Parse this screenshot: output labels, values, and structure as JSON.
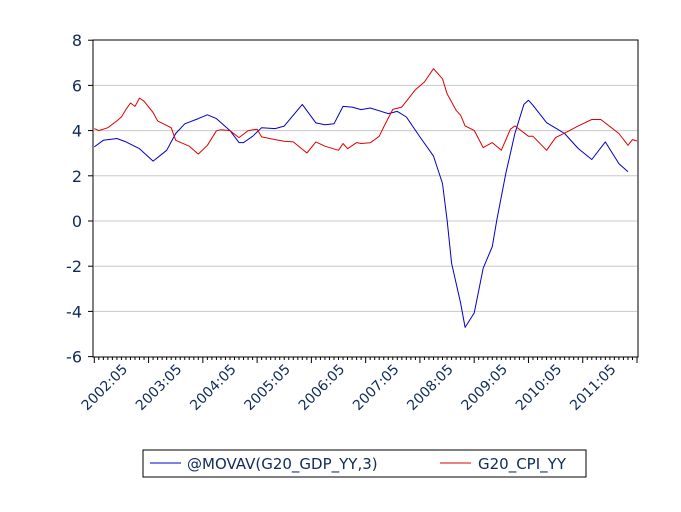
{
  "chart_data": {
    "type": "line",
    "title": "",
    "xlabel": "",
    "ylabel": "",
    "xlim": [
      "2002:05",
      "2012:05"
    ],
    "ylim": [
      -6,
      8
    ],
    "yticks": [
      "-6",
      "-4",
      "-2",
      "0",
      "2",
      "4",
      "6",
      "8"
    ],
    "xticks": [
      "2002:05",
      "2003:05",
      "2004:05",
      "2005:05",
      "2006:05",
      "2007:05",
      "2008:05",
      "2009:05",
      "2010:05",
      "2011:05"
    ],
    "grid": "horizontal",
    "legend_position": "bottom",
    "series": [
      {
        "name": "@MOVAV(G20_GDP_YY,3)",
        "color": "#0000c8",
        "points": [
          [
            "2002:05",
            3.28
          ],
          [
            "2002:07",
            3.57
          ],
          [
            "2002:10",
            3.65
          ],
          [
            "2002:12",
            3.5
          ],
          [
            "2003:03",
            3.2
          ],
          [
            "2003:06",
            2.65
          ],
          [
            "2003:09",
            3.13
          ],
          [
            "2003:11",
            3.87
          ],
          [
            "2004:01",
            4.3
          ],
          [
            "2004:04",
            4.53
          ],
          [
            "2004:06",
            4.7
          ],
          [
            "2004:08",
            4.53
          ],
          [
            "2004:11",
            4.0
          ],
          [
            "2005:01",
            3.47
          ],
          [
            "2005:02",
            3.47
          ],
          [
            "2005:04",
            3.75
          ],
          [
            "2005:06",
            4.13
          ],
          [
            "2005:09",
            4.09
          ],
          [
            "2005:11",
            4.2
          ],
          [
            "2006:03",
            5.16
          ],
          [
            "2006:06",
            4.34
          ],
          [
            "2006:08",
            4.26
          ],
          [
            "2006:10",
            4.3
          ],
          [
            "2006:12",
            5.07
          ],
          [
            "2007:02",
            5.04
          ],
          [
            "2007:04",
            4.93
          ],
          [
            "2007:06",
            5.0
          ],
          [
            "2007:10",
            4.75
          ],
          [
            "2007:12",
            4.85
          ],
          [
            "2008:02",
            4.6
          ],
          [
            "2008:05",
            3.72
          ],
          [
            "2008:08",
            2.87
          ],
          [
            "2008:10",
            1.66
          ],
          [
            "2008:11",
            0.04
          ],
          [
            "2008:12",
            -1.87
          ],
          [
            "2009:02",
            -3.63
          ],
          [
            "2009:03",
            -4.71
          ],
          [
            "2009:05",
            -4.07
          ],
          [
            "2009:07",
            -2.09
          ],
          [
            "2009:09",
            -1.13
          ],
          [
            "2009:10",
            0.04
          ],
          [
            "2009:12",
            2.1
          ],
          [
            "2010:02",
            3.87
          ],
          [
            "2010:04",
            5.16
          ],
          [
            "2010:05",
            5.34
          ],
          [
            "2010:06",
            5.12
          ],
          [
            "2010:09",
            4.35
          ],
          [
            "2011:01",
            3.87
          ],
          [
            "2011:04",
            3.21
          ],
          [
            "2011:07",
            2.72
          ],
          [
            "2011:10",
            3.5
          ],
          [
            "2012:01",
            2.54
          ],
          [
            "2012:03",
            2.18
          ]
        ]
      },
      {
        "name": "G20_CPI_YY",
        "color": "#e00000",
        "points": [
          [
            "2002:05",
            4.09
          ],
          [
            "2002:06",
            4.0
          ],
          [
            "2002:08",
            4.13
          ],
          [
            "2002:10",
            4.43
          ],
          [
            "2002:11",
            4.6
          ],
          [
            "2002:12",
            4.94
          ],
          [
            "2003:01",
            5.22
          ],
          [
            "2003:02",
            5.07
          ],
          [
            "2003:03",
            5.44
          ],
          [
            "2003:04",
            5.3
          ],
          [
            "2003:06",
            4.8
          ],
          [
            "2003:07",
            4.43
          ],
          [
            "2003:10",
            4.13
          ],
          [
            "2003:11",
            3.57
          ],
          [
            "2004:02",
            3.31
          ],
          [
            "2004:04",
            2.96
          ],
          [
            "2004:06",
            3.35
          ],
          [
            "2004:08",
            3.99
          ],
          [
            "2004:09",
            4.04
          ],
          [
            "2004:11",
            4.0
          ],
          [
            "2005:01",
            3.69
          ],
          [
            "2005:03",
            4.0
          ],
          [
            "2005:05",
            4.06
          ],
          [
            "2005:06",
            3.72
          ],
          [
            "2005:09",
            3.6
          ],
          [
            "2005:11",
            3.53
          ],
          [
            "2006:01",
            3.5
          ],
          [
            "2006:04",
            3.01
          ],
          [
            "2006:06",
            3.5
          ],
          [
            "2006:08",
            3.31
          ],
          [
            "2006:11",
            3.13
          ],
          [
            "2006:12",
            3.43
          ],
          [
            "2007:01",
            3.2
          ],
          [
            "2007:03",
            3.47
          ],
          [
            "2007:04",
            3.43
          ],
          [
            "2007:06",
            3.46
          ],
          [
            "2007:07",
            3.6
          ],
          [
            "2007:08",
            3.75
          ],
          [
            "2007:09",
            4.16
          ],
          [
            "2007:11",
            4.94
          ],
          [
            "2008:01",
            5.04
          ],
          [
            "2008:04",
            5.81
          ],
          [
            "2008:06",
            6.15
          ],
          [
            "2008:08",
            6.74
          ],
          [
            "2008:10",
            6.29
          ],
          [
            "2008:11",
            5.63
          ],
          [
            "2009:01",
            4.9
          ],
          [
            "2009:02",
            4.68
          ],
          [
            "2009:03",
            4.21
          ],
          [
            "2009:05",
            4.01
          ],
          [
            "2009:07",
            3.25
          ],
          [
            "2009:09",
            3.47
          ],
          [
            "2009:11",
            3.13
          ],
          [
            "2010:01",
            4.06
          ],
          [
            "2010:02",
            4.21
          ],
          [
            "2010:05",
            3.75
          ],
          [
            "2010:06",
            3.75
          ],
          [
            "2010:09",
            3.13
          ],
          [
            "2010:11",
            3.69
          ],
          [
            "2011:02",
            3.99
          ],
          [
            "2011:04",
            4.21
          ],
          [
            "2011:07",
            4.49
          ],
          [
            "2011:09",
            4.49
          ],
          [
            "2012:01",
            3.87
          ],
          [
            "2012:03",
            3.35
          ],
          [
            "2012:04",
            3.6
          ],
          [
            "2012:05",
            3.54
          ]
        ]
      }
    ]
  }
}
